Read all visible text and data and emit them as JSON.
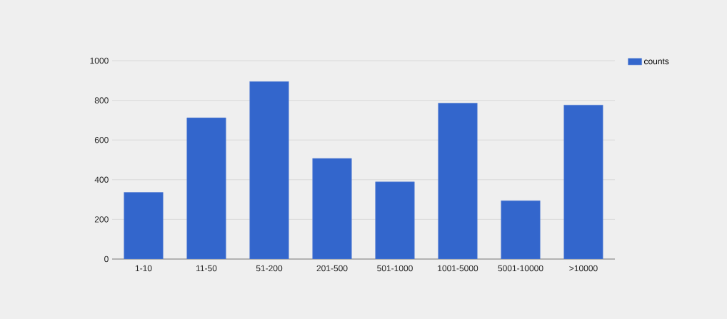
{
  "chart_data": {
    "type": "bar",
    "categories": [
      "1-10",
      "11-50",
      "51-200",
      "201-500",
      "501-1000",
      "1001-5000",
      "5001-10000",
      ">10000"
    ],
    "series": [
      {
        "name": "counts",
        "color": "#3366cc",
        "values": [
          336,
          712,
          895,
          507,
          389,
          786,
          294,
          776
        ]
      }
    ],
    "ylim": [
      0,
      1000
    ],
    "yticks": [
      0,
      200,
      400,
      600,
      800,
      1000
    ],
    "grid": "y",
    "legend": "top right"
  }
}
